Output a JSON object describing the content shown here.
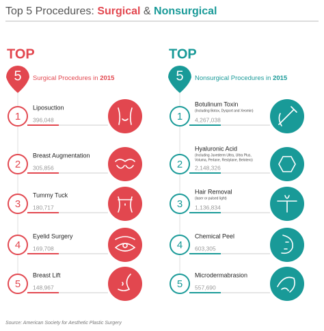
{
  "title": {
    "lead": "Top 5 Procedures:",
    "surgical": "Surgical",
    "amp": "&",
    "nonsurgical": "Nonsurgical"
  },
  "panels": [
    {
      "top": "TOP",
      "rank": "5",
      "heading": "Surgical Procedures in",
      "year": "2015",
      "items": [
        {
          "rank": "1",
          "name": "Liposuction",
          "notes": [],
          "value": "396,048"
        },
        {
          "rank": "2",
          "name": "Breast  Augmentation",
          "notes": [],
          "value": "305,856"
        },
        {
          "rank": "3",
          "name": "Tummy Tuck",
          "notes": [],
          "value": "180,717"
        },
        {
          "rank": "4",
          "name": "Eyelid Surgery",
          "notes": [],
          "value": "169,708"
        },
        {
          "rank": "5",
          "name": "Breast Lift",
          "notes": [],
          "value": "148,967"
        }
      ]
    },
    {
      "top": "TOP",
      "rank": "5",
      "heading": "Nonsurgical Procedures in",
      "year": "2015",
      "items": [
        {
          "rank": "1",
          "name": "Botulinum Toxin",
          "notes": [
            "(Including Botox, Dysport and Xeomin)"
          ],
          "value": "4,267,038"
        },
        {
          "rank": "2",
          "name": "Hyaluronic Acid",
          "notes": [
            "(Including Juvederm Ultra, Ultra Plus,",
            "Voluma, Perlane, Restylane, Belotero)"
          ],
          "value": "2,148,326"
        },
        {
          "rank": "3",
          "name": "Hair Removal",
          "notes": [
            "(laser or pulsed light)"
          ],
          "value": "1,136,834"
        },
        {
          "rank": "4",
          "name": "Chemical Peel",
          "notes": [],
          "value": "603,305"
        },
        {
          "rank": "5",
          "name": "Microdermabrasion",
          "notes": [],
          "value": "557,690"
        }
      ]
    }
  ],
  "source": "Source: American Society for Aesthetic Plastic Surgery"
}
